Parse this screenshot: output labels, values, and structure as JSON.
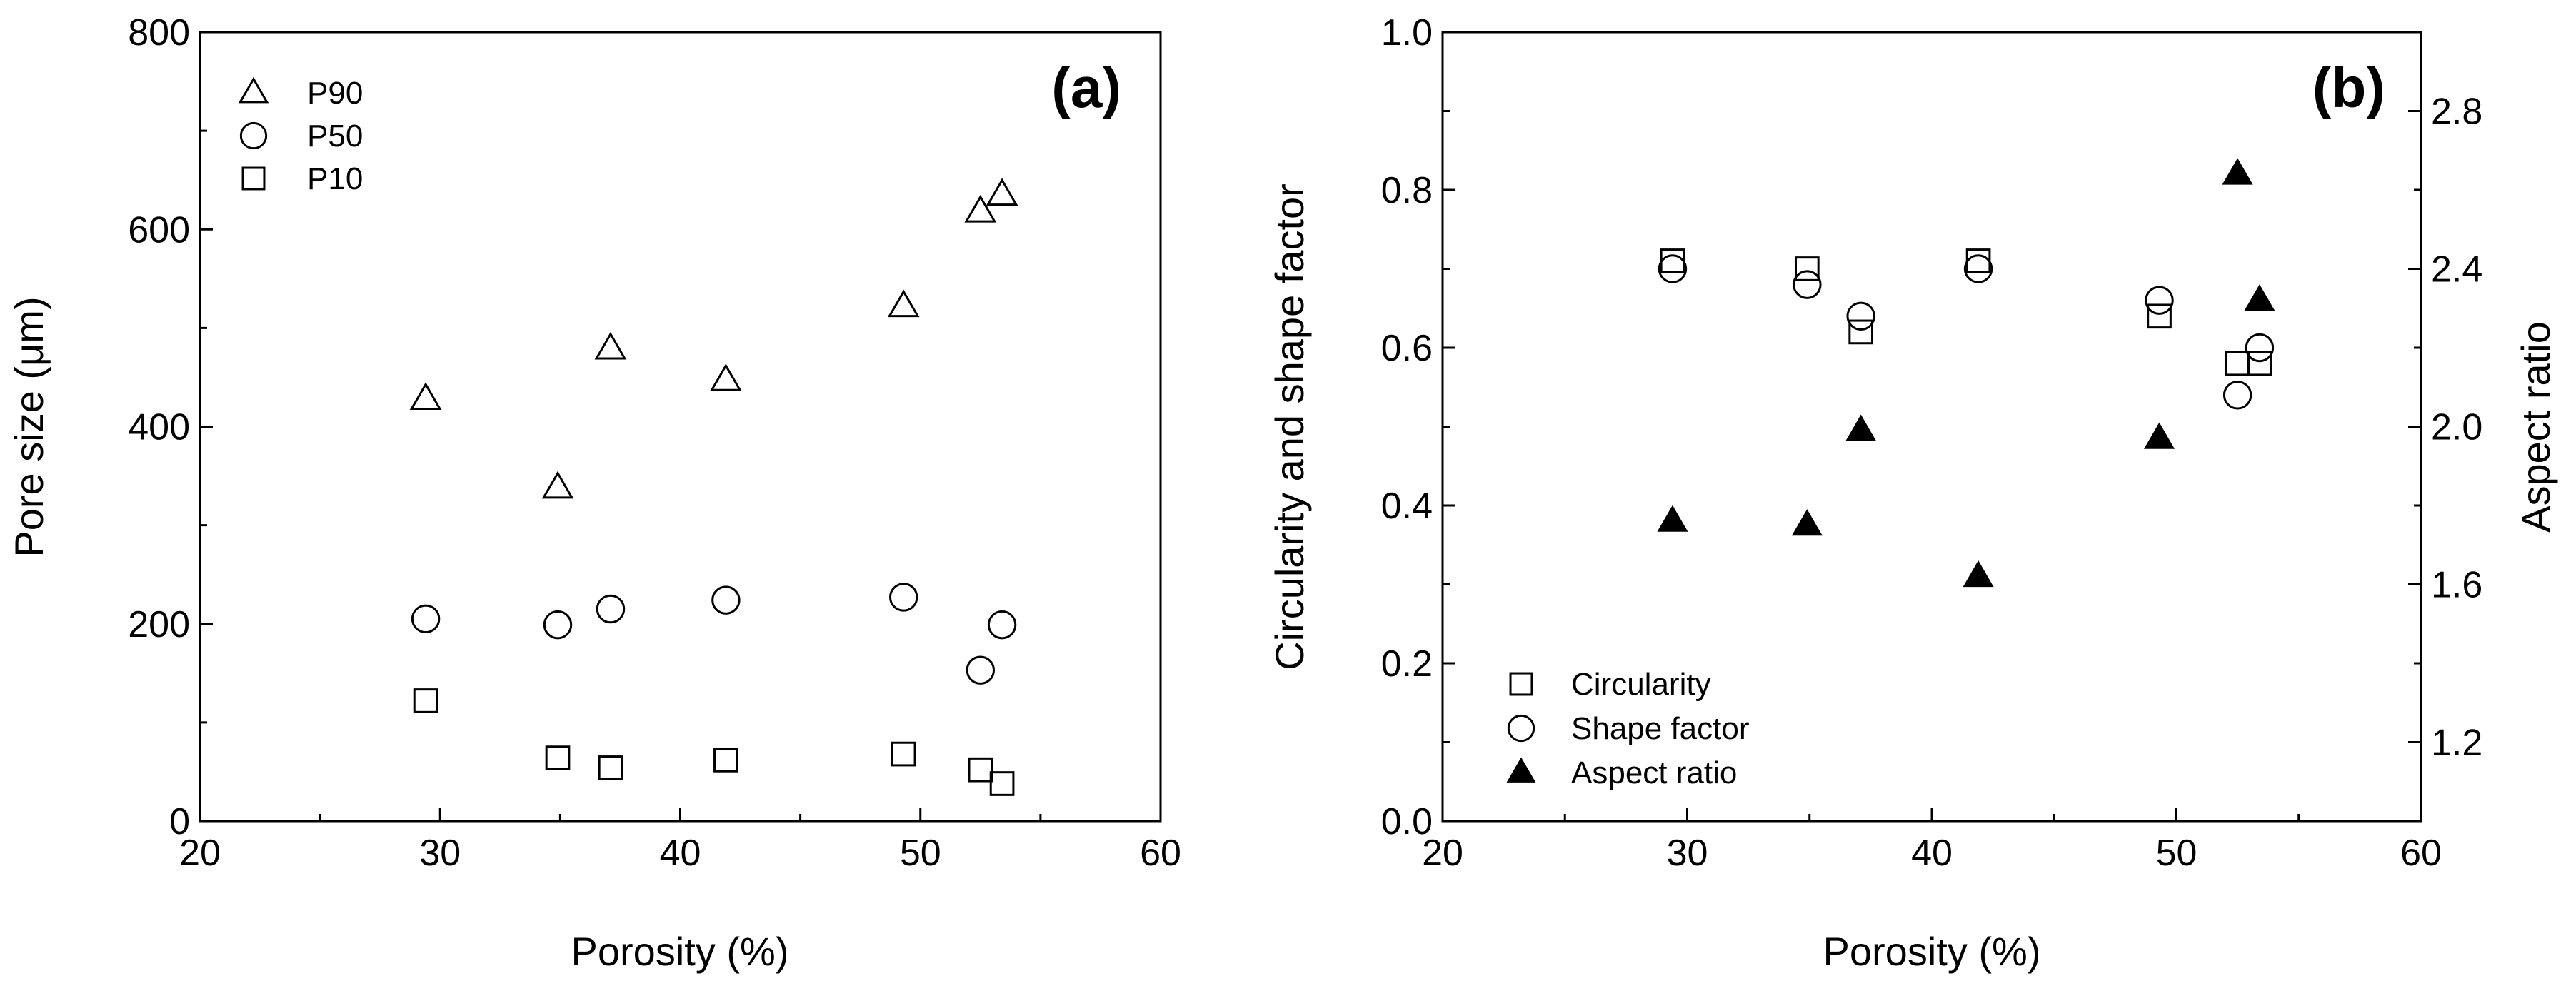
{
  "chart_data": [
    {
      "type": "scatter",
      "panel_label": "(a)",
      "xlabel": "Porosity (%)",
      "ylabel": "Pore size (μm)",
      "xlim": [
        20,
        60
      ],
      "ylim": [
        0,
        800
      ],
      "xticks": [
        "20",
        "30",
        "40",
        "50",
        "60"
      ],
      "yticks": [
        "0",
        "200",
        "400",
        "600",
        "800"
      ],
      "legend_position": "top-left",
      "series": [
        {
          "name": "P90",
          "marker": "triangle",
          "filled": false,
          "points": [
            [
              29.4,
              428
            ],
            [
              34.9,
              338
            ],
            [
              37.1,
              479
            ],
            [
              41.9,
              447
            ],
            [
              49.3,
              522
            ],
            [
              52.5,
              618
            ],
            [
              53.4,
              635
            ]
          ]
        },
        {
          "name": "P50",
          "marker": "circle",
          "filled": false,
          "points": [
            [
              29.4,
              205
            ],
            [
              34.9,
              199
            ],
            [
              37.1,
              215
            ],
            [
              41.9,
              224
            ],
            [
              49.3,
              227
            ],
            [
              52.5,
              153
            ],
            [
              53.4,
              199
            ]
          ]
        },
        {
          "name": "P10",
          "marker": "square",
          "filled": false,
          "points": [
            [
              29.4,
              122
            ],
            [
              34.9,
              64
            ],
            [
              37.1,
              54
            ],
            [
              41.9,
              62
            ],
            [
              49.3,
              68
            ],
            [
              52.5,
              52
            ],
            [
              53.4,
              38
            ]
          ]
        }
      ]
    },
    {
      "type": "scatter",
      "panel_label": "(b)",
      "xlabel": "Porosity (%)",
      "ylabel": "Circularity and shape factor",
      "y2label": "Aspect ratio",
      "xlim": [
        20,
        60
      ],
      "ylim": [
        0,
        1.0
      ],
      "y2lim": [
        1.0,
        3.0
      ],
      "xticks": [
        "20",
        "30",
        "40",
        "50",
        "60"
      ],
      "yticks": [
        "0.0",
        "0.2",
        "0.4",
        "0.6",
        "0.8",
        "1.0"
      ],
      "y2ticks": [
        "1.2",
        "1.6",
        "2.0",
        "2.4",
        "2.8"
      ],
      "legend_position": "bottom-left",
      "series": [
        {
          "name": "Circularity",
          "marker": "square",
          "filled": false,
          "axis": "left",
          "points": [
            [
              29.4,
              0.71
            ],
            [
              34.9,
              0.7
            ],
            [
              37.1,
              0.62
            ],
            [
              41.9,
              0.71
            ],
            [
              49.3,
              0.64
            ],
            [
              52.5,
              0.58
            ],
            [
              53.4,
              0.58
            ]
          ]
        },
        {
          "name": "Shape factor",
          "marker": "circle",
          "filled": false,
          "axis": "left",
          "points": [
            [
              29.4,
              0.7
            ],
            [
              34.9,
              0.68
            ],
            [
              37.1,
              0.64
            ],
            [
              41.9,
              0.7
            ],
            [
              49.3,
              0.66
            ],
            [
              52.5,
              0.54
            ],
            [
              53.4,
              0.6
            ]
          ]
        },
        {
          "name": "Aspect ratio",
          "marker": "triangle",
          "filled": true,
          "axis": "right",
          "points": [
            [
              29.4,
              1.76
            ],
            [
              34.9,
              1.75
            ],
            [
              37.1,
              1.99
            ],
            [
              41.9,
              1.62
            ],
            [
              49.3,
              1.97
            ],
            [
              52.5,
              2.64
            ],
            [
              53.4,
              2.32
            ]
          ]
        }
      ]
    }
  ]
}
